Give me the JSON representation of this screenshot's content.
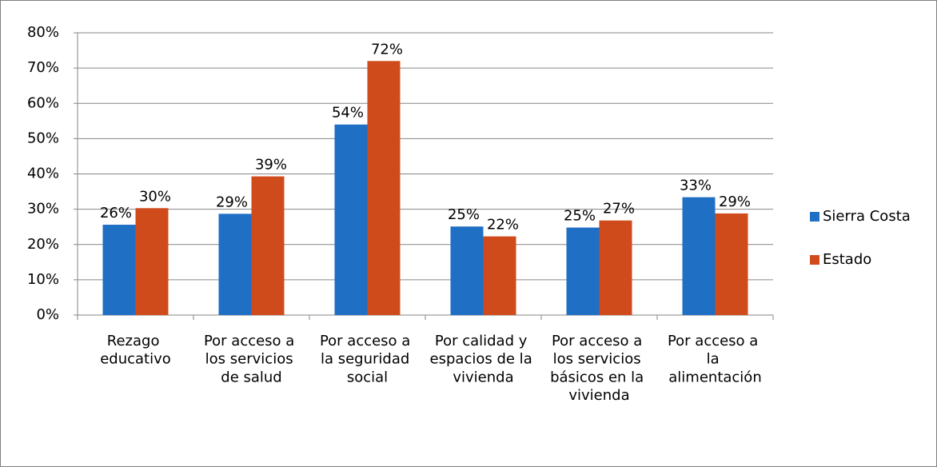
{
  "chart_data": {
    "type": "bar",
    "categories": [
      "Rezago educativo",
      "Por acceso a los servicios de salud",
      "Por acceso a la seguridad social",
      "Por calidad y espacios de la vivienda",
      "Por acceso a los servicios básicos en la vivienda",
      "Por acceso a la alimentación"
    ],
    "series": [
      {
        "name": "Sierra Costa",
        "color": "#1f6fc5",
        "values": [
          25.6,
          28.7,
          54,
          25.1,
          24.8,
          33.4
        ],
        "value_labels": [
          "26%",
          "29%",
          "54%",
          "25%",
          "25%",
          "33%"
        ]
      },
      {
        "name": "Estado",
        "color": "#d04b1c",
        "values": [
          30.3,
          39.3,
          72,
          22.3,
          26.8,
          28.8
        ],
        "value_labels": [
          "30%",
          "39%",
          "72%",
          "22%",
          "27%",
          "29%"
        ]
      }
    ],
    "ylim": [
      0,
      80
    ],
    "yticks": [
      {
        "value": 0,
        "label": "0%"
      },
      {
        "value": 10,
        "label": "10%"
      },
      {
        "value": 20,
        "label": "20%"
      },
      {
        "value": 30,
        "label": "30%"
      },
      {
        "value": 40,
        "label": "40%"
      },
      {
        "value": 50,
        "label": "50%"
      },
      {
        "value": 60,
        "label": "60%"
      },
      {
        "value": 70,
        "label": "70%"
      },
      {
        "value": 80,
        "label": "80%"
      }
    ],
    "grid": true,
    "legend": "right"
  }
}
